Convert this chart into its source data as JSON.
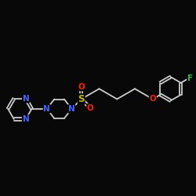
{
  "bg_color": "#080808",
  "bond_color": "#cccccc",
  "atom_colors": {
    "N": "#4466ff",
    "O": "#ff2200",
    "S": "#bbbb00",
    "F": "#33bb44"
  },
  "font_size": 7.5,
  "line_width": 1.3,
  "scale": 1.0
}
